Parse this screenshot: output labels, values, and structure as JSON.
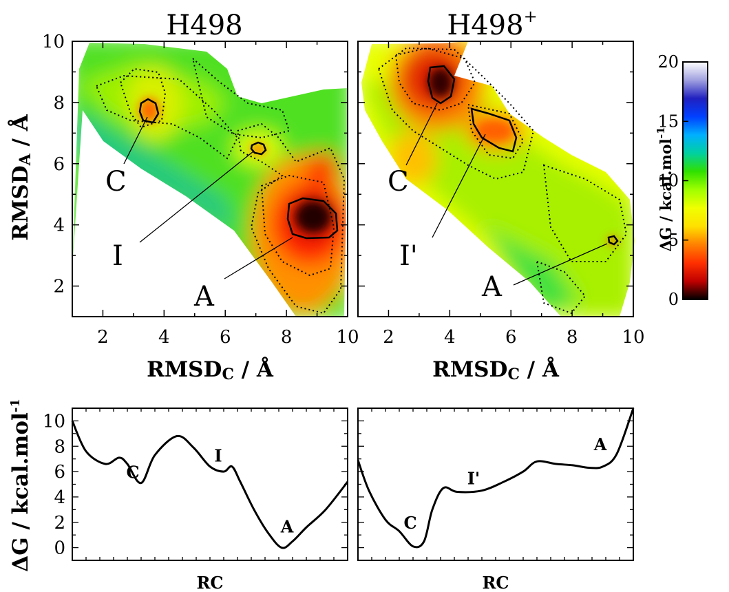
{
  "chart_data": [
    {
      "type": "heatmap",
      "title": "H498",
      "xlabel": "RMSD",
      "xlabel_sub": "C",
      "xlabel_unit": " / Å",
      "ylabel": "RMSD",
      "ylabel_sub": "A",
      "ylabel_unit": " / Å",
      "xlim": [
        1,
        10
      ],
      "ylim": [
        1,
        10
      ],
      "xticks": [
        "2",
        "4",
        "6",
        "8",
        "10"
      ],
      "yticks": [
        "2",
        "4",
        "6",
        "8",
        "10"
      ],
      "minima": [
        {
          "label": "C",
          "x": 3.5,
          "y": 7.7
        },
        {
          "label": "I",
          "x": 7.2,
          "y": 6.5
        },
        {
          "label": "A",
          "x": 8.8,
          "y": 4.2
        }
      ]
    },
    {
      "type": "heatmap",
      "title": "H498",
      "title_sup": "+",
      "xlabel": "RMSD",
      "xlabel_sub": "C",
      "xlabel_unit": " / Å",
      "xlim": [
        1,
        10
      ],
      "ylim": [
        1,
        10
      ],
      "xticks": [
        "2",
        "4",
        "6",
        "8",
        "10"
      ],
      "minima": [
        {
          "label": "C",
          "x": 3.6,
          "y": 8.6
        },
        {
          "label": "I'",
          "x": 5.3,
          "y": 7.2
        },
        {
          "label": "A",
          "x": 9.3,
          "y": 3.4
        }
      ]
    },
    {
      "type": "line",
      "xlabel": "RC",
      "ylabel": "ΔG / kcal.mol",
      "ylabel_sup": "-1",
      "ylim": [
        -1,
        11
      ],
      "yticks": [
        "0",
        "2",
        "4",
        "6",
        "8",
        "10"
      ],
      "x": [
        0,
        0.05,
        0.12,
        0.17,
        0.2,
        0.25,
        0.3,
        0.38,
        0.44,
        0.5,
        0.55,
        0.58,
        0.61,
        0.66,
        0.71,
        0.76,
        0.8,
        0.85,
        0.92,
        1.0
      ],
      "values": [
        10.0,
        7.6,
        6.6,
        7.1,
        6.6,
        5.1,
        7.3,
        8.8,
        7.9,
        6.4,
        6.0,
        6.4,
        5.2,
        3.0,
        1.2,
        0.0,
        0.5,
        1.6,
        3.0,
        5.2
      ],
      "annotations": [
        {
          "label": "C",
          "x": 0.22,
          "y": 5.5
        },
        {
          "label": "I",
          "x": 0.53,
          "y": 6.8
        },
        {
          "label": "A",
          "x": 0.78,
          "y": 1.2
        }
      ]
    },
    {
      "type": "line",
      "xlabel": "RC",
      "ylim": [
        -1,
        11
      ],
      "x": [
        0,
        0.04,
        0.1,
        0.15,
        0.2,
        0.24,
        0.27,
        0.31,
        0.36,
        0.45,
        0.53,
        0.6,
        0.65,
        0.72,
        0.78,
        0.84,
        0.89,
        0.94,
        1.0
      ],
      "values": [
        6.9,
        4.5,
        2.2,
        1.3,
        0.1,
        0.5,
        3.0,
        4.7,
        4.4,
        4.5,
        5.2,
        6.0,
        6.8,
        6.6,
        6.5,
        6.3,
        6.4,
        7.4,
        11.0
      ],
      "annotations": [
        {
          "label": "C",
          "x": 0.19,
          "y": 1.5
        },
        {
          "label": "I'",
          "x": 0.42,
          "y": 5.0
        },
        {
          "label": "A",
          "x": 0.88,
          "y": 7.7
        }
      ]
    }
  ],
  "colorbar": {
    "label": "ΔG / kcal.mol",
    "label_sup": "-1",
    "ticks": [
      "0",
      "5",
      "10",
      "15",
      "20"
    ],
    "range": [
      0,
      20
    ],
    "colors": [
      "#000000",
      "#c00000",
      "#ff3000",
      "#ff8000",
      "#ffe000",
      "#f0ff00",
      "#a0ff00",
      "#30e000",
      "#00d0a0",
      "#00b0ff",
      "#0040ff",
      "#2020c0",
      "#a0a0e0",
      "#ffffff"
    ]
  }
}
